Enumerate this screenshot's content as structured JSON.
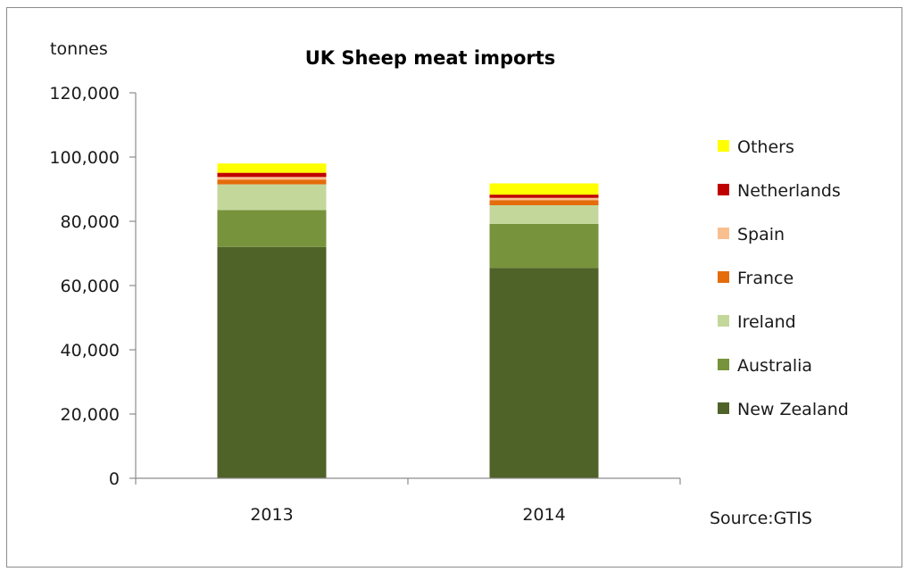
{
  "chart_data": {
    "type": "bar",
    "stacked": true,
    "title": "UK Sheep meat imports",
    "ylabel": "tonnes",
    "xlabel": "",
    "source": "Source:GTIS",
    "categories": [
      "2013",
      "2014"
    ],
    "ylim": [
      0,
      120000
    ],
    "yticks": [
      0,
      20000,
      40000,
      60000,
      80000,
      100000,
      120000
    ],
    "ytick_labels": [
      "0",
      "20,000",
      "40,000",
      "60,000",
      "80,000",
      "100,000",
      "120,000"
    ],
    "grid": false,
    "legend_position": "right",
    "series": [
      {
        "name": "New Zealand",
        "values": [
          72000,
          65500
        ],
        "color": "#4f6228"
      },
      {
        "name": "Australia",
        "values": [
          11500,
          13700
        ],
        "color": "#77933c"
      },
      {
        "name": "Ireland",
        "values": [
          8000,
          5800
        ],
        "color": "#c4d79b"
      },
      {
        "name": "France",
        "values": [
          1500,
          1600
        ],
        "color": "#e46c0a"
      },
      {
        "name": "Spain",
        "values": [
          800,
          700
        ],
        "color": "#fabf8f"
      },
      {
        "name": "Netherlands",
        "values": [
          1300,
          1000
        ],
        "color": "#c00000"
      },
      {
        "name": "Others",
        "values": [
          2900,
          3500
        ],
        "color": "#ffff00"
      }
    ],
    "legend_order": [
      "Others",
      "Netherlands",
      "Spain",
      "France",
      "Ireland",
      "Australia",
      "New Zealand"
    ]
  }
}
